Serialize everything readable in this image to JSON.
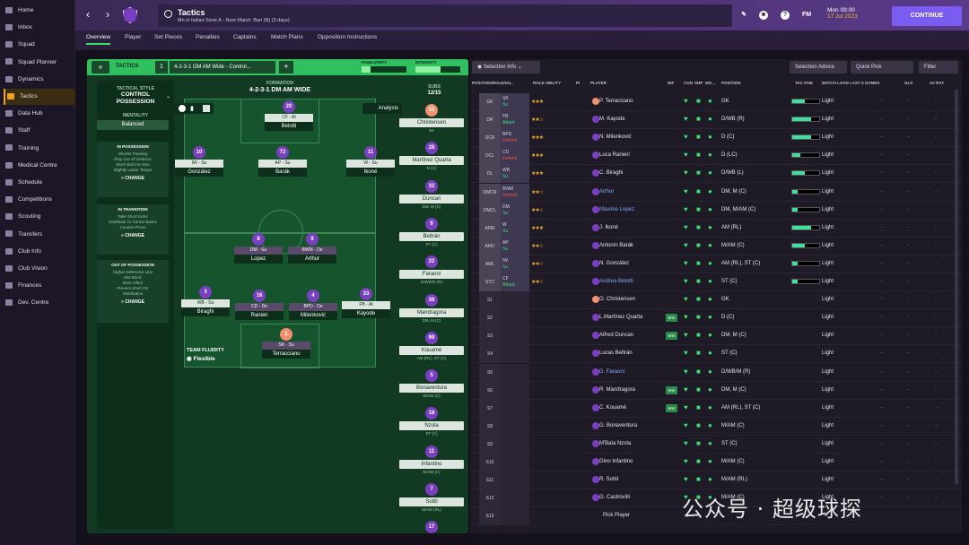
{
  "sidebar": {
    "items": [
      "Home",
      "Inbox",
      "Squad",
      "Squad Planner",
      "Dynamics",
      "Tactics",
      "Data Hub",
      "Staff",
      "Training",
      "Medical Centre",
      "Schedule",
      "Competitions",
      "Scouting",
      "Transfers",
      "Club Info",
      "Club Vision",
      "Finances",
      "Dev. Centre"
    ],
    "active": "Tactics"
  },
  "header": {
    "title": "Tactics",
    "subtitle": "8th in Italian Serie A - Next Match: Bari (N) (3 days)",
    "time": "Mon 09:00",
    "date": "17 Jul 2023",
    "continue": "CONTINUE",
    "fm": "FM"
  },
  "tabs": [
    "Overview",
    "Player",
    "Set Pieces",
    "Penalties",
    "Captains",
    "Match Plans",
    "Opposition Instructions"
  ],
  "tactic": {
    "label": "TACTICS",
    "slot": "1",
    "formation_select": "4-2-3-1 DM AM Wide - Control...",
    "familiarity": "FAMILIARITY",
    "intensity": "INTENSITY",
    "formation_label": "FORMATION",
    "formation": "4-2-3-1 DM AM WIDE",
    "analysis": "Analysis",
    "subs_label": "SUBS",
    "subs_count": "12/15"
  },
  "style": {
    "h": "TACTICAL STYLE",
    "title": "CONTROL POSSESSION",
    "mentality_h": "MENTALITY",
    "mentality": "Balanced",
    "in_poss_h": "IN POSSESSION",
    "in_poss": [
      "Shorter Passing",
      "Play Out Of Defence",
      "Work Ball Into Box",
      "Slightly Lower Tempo"
    ],
    "in_trans_h": "IN TRANSITION",
    "in_trans": [
      "Take Short Kicks",
      "Distribute To Centre-Backs",
      "Counter-Press"
    ],
    "out_poss_h": "OUT OF POSSESSION",
    "out_poss": [
      "Higher Defensive Line",
      "Mid Block",
      "More Often",
      "Prevent Short GK",
      "Distribution"
    ],
    "change": "CHANGE",
    "fluidity_h": "TEAM FLUIDITY",
    "fluidity": "Flexible"
  },
  "pitch_players": [
    {
      "num": "20",
      "role": "CF - At",
      "name": "Belotti"
    },
    {
      "num": "10",
      "role": "IW - Su",
      "name": "González"
    },
    {
      "num": "72",
      "role": "AP - Su",
      "name": "Barák"
    },
    {
      "num": "11",
      "role": "W - Su",
      "name": "Ikoné"
    },
    {
      "num": "8",
      "role": "DM - Su",
      "name": "Lopez"
    },
    {
      "num": "6",
      "role": "BWM - De",
      "name": "Arthur"
    },
    {
      "num": "3",
      "role": "WB - Su",
      "name": "Biraghi"
    },
    {
      "num": "16",
      "role": "CD - De",
      "name": "Ranieri"
    },
    {
      "num": "4",
      "role": "BPD - De",
      "name": "Milenković"
    },
    {
      "num": "33",
      "role": "FB - At",
      "name": "Kayode"
    },
    {
      "num": "1",
      "role": "SK - Su",
      "name": "Terracciano"
    }
  ],
  "subs": [
    {
      "num": "53",
      "name": "Christensen",
      "pos": "GK",
      "gk": true
    },
    {
      "num": "28",
      "name": "Martínez Quarta",
      "pos": "D (C)"
    },
    {
      "num": "32",
      "name": "Duncan",
      "pos": "DM, M (C)"
    },
    {
      "num": "9",
      "name": "Beltrán",
      "pos": "ST (C)"
    },
    {
      "num": "22",
      "name": "Faraoni",
      "pos": "D/WB/M (R)"
    },
    {
      "num": "38",
      "name": "Mandragora",
      "pos": "DM, M (C)"
    },
    {
      "num": "99",
      "name": "Kouamé",
      "pos": "AM (RL), ST (C)"
    },
    {
      "num": "5",
      "name": "Bonaventura",
      "pos": "M/AM (C)"
    },
    {
      "num": "18",
      "name": "Nzola",
      "pos": "ST (C)"
    },
    {
      "num": "11",
      "name": "Infantino",
      "pos": "M/AM (C)"
    },
    {
      "num": "7",
      "name": "Sottil",
      "pos": "M/AM (RL)"
    },
    {
      "num": "17",
      "name": "",
      "pos": ""
    }
  ],
  "table": {
    "tools": {
      "selection_info": "Selection Info",
      "selection_advice": "Selection Advice",
      "quick_pick": "Quick Pick",
      "filter": "Filter"
    },
    "headers": [
      "POSITION/ROLE/DU...",
      "ROLE ABILITY",
      "PI",
      "PLAYER",
      "INF",
      "CON",
      "SHP",
      "MO...",
      "POSITION",
      "TAC FAM",
      "MATCH LOAD LAST 5 GAMES",
      "GLS",
      "AV RAT"
    ],
    "rows": [
      {
        "pos": "GK",
        "r1": "SK",
        "r2": "Su",
        "stars": "★★★",
        "name": "P. Terracciano",
        "ppos": "GK",
        "load": "Light",
        "tf": 0.45,
        "gk": true
      },
      {
        "pos": "DR",
        "r1": "FB",
        "r2": "Attack",
        "stars": "★★☆",
        "name": "M. Kayode",
        "ppos": "D/WB (R)",
        "load": "Light",
        "tf": 0.7
      },
      {
        "pos": "DCR",
        "r1": "BPD",
        "r2": "Defend",
        "def": true,
        "stars": "★★★",
        "name": "N. Milenković",
        "ppos": "D (C)",
        "load": "Light",
        "tf": 0.7
      },
      {
        "pos": "DCL",
        "r1": "CD",
        "r2": "Defend",
        "def": true,
        "stars": "★★★",
        "name": "Luca Ranieri",
        "ppos": "D (LC)",
        "load": "Light",
        "tf": 0.3
      },
      {
        "pos": "DL",
        "r1": "WB",
        "r2": "Su",
        "stars": "★★★",
        "name": "C. Biraghi",
        "ppos": "D/WB (L)",
        "load": "Light",
        "tf": 0.45
      },
      {
        "pos": "DMCR",
        "r1": "BWM",
        "r2": "Defend",
        "def": true,
        "stars": "★★☆",
        "name": "Arthur",
        "ppos": "DM, M (C)",
        "load": "Light",
        "tf": 0.2,
        "blue": true
      },
      {
        "pos": "DMCL",
        "r1": "DM",
        "r2": "Su",
        "stars": "★★☆",
        "name": "Maxime Lopez",
        "ppos": "DM, M/AM (C)",
        "load": "Light",
        "tf": 0.2,
        "blue": true
      },
      {
        "pos": "AMR",
        "r1": "W",
        "r2": "Su",
        "stars": "★★★",
        "name": "J. Ikoné",
        "ppos": "AM (RL)",
        "load": "Light",
        "tf": 0.7
      },
      {
        "pos": "AMC",
        "r1": "AP",
        "r2": "Su",
        "stars": "★★☆",
        "name": "Antonín Barák",
        "ppos": "M/AM (C)",
        "load": "Light",
        "tf": 0.45
      },
      {
        "pos": "AML",
        "r1": "IW",
        "r2": "Su",
        "stars": "★★☆",
        "name": "N. González",
        "ppos": "AM (RL), ST (C)",
        "load": "Light",
        "tf": 0.2
      },
      {
        "pos": "STC",
        "r1": "CF",
        "r2": "Attack",
        "stars": "★★☆",
        "name": "Andrea Belotti",
        "ppos": "ST (C)",
        "load": "Light",
        "tf": 0.2,
        "blue": true
      },
      {
        "pos": "S1",
        "name": "O. Christensen",
        "ppos": "GK",
        "load": "Light",
        "gk": true
      },
      {
        "pos": "S2",
        "name": "L.Martínez Quarta",
        "ppos": "D (C)",
        "load": "Light",
        "wn": "Wnt"
      },
      {
        "pos": "S3",
        "name": "Alfred Duncan",
        "ppos": "DM, M (C)",
        "load": "Light",
        "wn": "Wnt"
      },
      {
        "pos": "S4",
        "name": "Lucas Beltrán",
        "ppos": "ST (C)",
        "load": "Light"
      },
      {
        "pos": "S5",
        "name": "D. Faraoni",
        "ppos": "D/WB/M (R)",
        "load": "Light",
        "blue": true
      },
      {
        "pos": "S6",
        "name": "R. Mandragora",
        "ppos": "DM, M (C)",
        "load": "Light",
        "wn": "Wnt"
      },
      {
        "pos": "S7",
        "name": "C. Kouamé",
        "ppos": "AM (RL), ST (C)",
        "load": "Light",
        "wn": "Wnt"
      },
      {
        "pos": "S8",
        "name": "G. Bonaventura",
        "ppos": "M/AM (C)",
        "load": "Light"
      },
      {
        "pos": "S9",
        "name": "M'Bala Nzola",
        "ppos": "ST (C)",
        "load": "Light"
      },
      {
        "pos": "S10",
        "name": "Gino Infantino",
        "ppos": "M/AM (C)",
        "load": "Light"
      },
      {
        "pos": "S11",
        "name": "R. Sottil",
        "ppos": "M/AM (RL)",
        "load": "Light"
      },
      {
        "pos": "S12",
        "name": "G. Castrovilli",
        "ppos": "M/AM (C)",
        "load": "Light"
      },
      {
        "pos": "S13",
        "name": "Pick Player",
        "ppos": "",
        "load": ""
      }
    ]
  },
  "watermark": "公众号 · 超级球探"
}
